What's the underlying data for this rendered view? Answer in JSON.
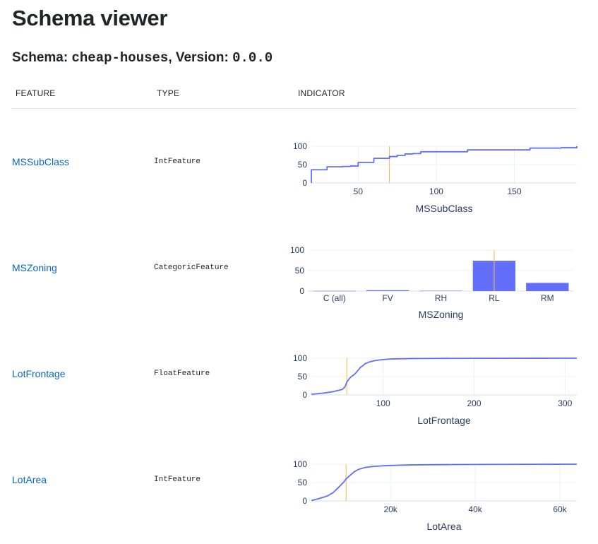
{
  "page": {
    "title": "Schema viewer",
    "schema_label": "Schema: ",
    "schema_name": "cheap-houses",
    "version_label": ", Version: ",
    "version": "0.0.0"
  },
  "table": {
    "headers": [
      "FEATURE",
      "TYPE",
      "INDICATOR"
    ]
  },
  "colors": {
    "series": "#636efa",
    "marker_line": "#f4b942",
    "link": "#0b67c2",
    "axis_text": "#2a3f5f",
    "grid": "#ebf0f8"
  },
  "features": [
    {
      "name": "MSSubClass",
      "type": "IntFeature"
    },
    {
      "name": "MSZoning",
      "type": "CategoricFeature"
    },
    {
      "name": "LotFrontage",
      "type": "FloatFeature"
    },
    {
      "name": "LotArea",
      "type": "IntFeature"
    }
  ],
  "chart_data": [
    {
      "type": "line",
      "line_shape": "step",
      "title": "",
      "xlabel": "MSSubClass",
      "ylabel": "",
      "xlim": [
        20,
        190
      ],
      "ylim": [
        0,
        100
      ],
      "xticks": [
        50,
        100,
        150
      ],
      "yticks": [
        0,
        50,
        100
      ],
      "grid": true,
      "marker_x": 70,
      "series": [
        {
          "x": [
            20,
            30,
            40,
            45,
            50,
            60,
            70,
            75,
            80,
            85,
            90,
            120,
            160,
            180,
            190
          ],
          "y": [
            36,
            44,
            45,
            46,
            56,
            67,
            72,
            75,
            79,
            80,
            85,
            90,
            95,
            96,
            100
          ]
        }
      ]
    },
    {
      "type": "bar",
      "title": "",
      "xlabel": "MSZoning",
      "ylabel": "",
      "categories": [
        "C (all)",
        "FV",
        "RH",
        "RL",
        "RM"
      ],
      "values": [
        0.5,
        2,
        0.8,
        74,
        20
      ],
      "ylim": [
        0,
        100
      ],
      "yticks": [
        0,
        50,
        100
      ],
      "grid": true,
      "marker_category": "RL"
    },
    {
      "type": "line",
      "title": "",
      "xlabel": "LotFrontage",
      "ylabel": "",
      "xlim": [
        21,
        313
      ],
      "ylim": [
        0,
        100
      ],
      "xticks": [
        100,
        200,
        300
      ],
      "yticks": [
        0,
        50,
        100
      ],
      "grid": true,
      "marker_x": 60,
      "series": [
        {
          "x": [
            21,
            35,
            45,
            50,
            55,
            58,
            60,
            63,
            65,
            68,
            70,
            72,
            75,
            78,
            80,
            85,
            90,
            95,
            100,
            110,
            130,
            160,
            200,
            313
          ],
          "y": [
            2,
            5,
            9,
            12,
            15,
            22,
            35,
            45,
            50,
            55,
            60,
            66,
            75,
            80,
            85,
            90,
            93,
            95,
            96,
            98,
            99,
            99.5,
            99.8,
            100
          ]
        }
      ]
    },
    {
      "type": "line",
      "title": "",
      "xlabel": "LotArea",
      "ylabel": "",
      "xlim": [
        1300,
        64000
      ],
      "ylim": [
        0,
        100
      ],
      "xticks": [
        20000,
        40000,
        60000
      ],
      "xticklabels": [
        "20k",
        "40k",
        "60k"
      ],
      "yticks": [
        0,
        50,
        100
      ],
      "grid": true,
      "marker_x": 9500,
      "series": [
        {
          "x": [
            1300,
            3000,
            5000,
            6500,
            8000,
            9000,
            9500,
            10500,
            11500,
            12500,
            14000,
            16000,
            19000,
            25000,
            35000,
            64000
          ],
          "y": [
            1,
            6,
            13,
            23,
            40,
            52,
            60,
            70,
            80,
            86,
            91,
            94,
            96,
            98,
            99,
            100
          ]
        }
      ]
    }
  ]
}
